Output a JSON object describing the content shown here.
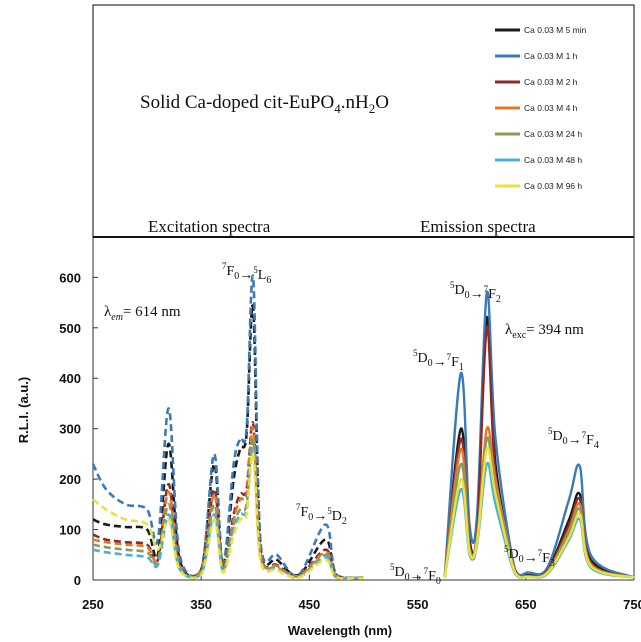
{
  "chart_data": {
    "type": "line",
    "title": "Solid Ca-doped cit-EuPO",
    "title_sub1": "4",
    "title_mid": ".nH",
    "title_sub2": "2",
    "title_end": "O",
    "xlabel": "Wavelength (nm)",
    "ylabel": "R.L.I. (a.u.)",
    "xlim": [
      250,
      750
    ],
    "ylim": [
      0,
      680
    ],
    "x_ticks": [
      "250",
      "350",
      "450",
      "550",
      "650",
      "750"
    ],
    "y_ticks": [
      "0",
      "100",
      "200",
      "300",
      "400",
      "500",
      "600"
    ],
    "section_labels": {
      "excitation": "Excitation spectra",
      "emission": "Emission spectra"
    },
    "lambda_em": {
      "symbol": "λ",
      "sub": "em",
      "value": "= 614 nm"
    },
    "lambda_exc": {
      "symbol": "λ",
      "sub": "exc",
      "value": "= 394 nm"
    },
    "annotations": [
      {
        "id": "l6",
        "from": "7F0",
        "to": "5L6"
      },
      {
        "id": "d2",
        "from": "7F0",
        "to": "5D2"
      },
      {
        "id": "f0",
        "from": "5D0",
        "to": "7F0"
      },
      {
        "id": "f1",
        "from": "5D0",
        "to": "7F1"
      },
      {
        "id": "f2",
        "from": "5D0",
        "to": "7F2"
      },
      {
        "id": "f3",
        "from": "5D0",
        "to": "7F3"
      },
      {
        "id": "f4",
        "from": "5D0",
        "to": "7F4"
      }
    ],
    "legend_position": "top-right",
    "series": [
      {
        "name": "Ca 0.03 M 5 min",
        "color": "#1a1a1a",
        "excitation": [
          [
            "250",
            120
          ],
          [
            "262",
            110
          ],
          [
            "280",
            105
          ],
          [
            "300",
            100
          ],
          [
            "310",
            50
          ],
          [
            "320",
            270
          ],
          [
            "330",
            40
          ],
          [
            "350",
            20
          ],
          [
            "362",
            230
          ],
          [
            "370",
            30
          ],
          [
            "380",
            200
          ],
          [
            "386",
            260
          ],
          [
            "392",
            290
          ],
          [
            "398",
            540
          ],
          [
            "405",
            60
          ],
          [
            "420",
            40
          ],
          [
            "440",
            10
          ],
          [
            "465",
            80
          ],
          [
            "475",
            10
          ],
          [
            "500",
            5
          ]
        ],
        "emission": [
          [
            "575",
            5
          ],
          [
            "590",
            300
          ],
          [
            "598",
            80
          ],
          [
            "605",
            100
          ],
          [
            "614",
            520
          ],
          [
            "622",
            230
          ],
          [
            "640",
            20
          ],
          [
            "652",
            10
          ],
          [
            "670",
            20
          ],
          [
            "690",
            120
          ],
          [
            "700",
            170
          ],
          [
            "710",
            40
          ],
          [
            "750",
            5
          ]
        ]
      },
      {
        "name": "Ca 0.03 M 1 h",
        "color": "#3a7ab8",
        "excitation": [
          [
            "250",
            230
          ],
          [
            "262",
            180
          ],
          [
            "280",
            150
          ],
          [
            "300",
            140
          ],
          [
            "310",
            80
          ],
          [
            "320",
            340
          ],
          [
            "330",
            50
          ],
          [
            "350",
            20
          ],
          [
            "362",
            250
          ],
          [
            "370",
            30
          ],
          [
            "380",
            230
          ],
          [
            "386",
            280
          ],
          [
            "392",
            300
          ],
          [
            "398",
            600
          ],
          [
            "405",
            70
          ],
          [
            "420",
            50
          ],
          [
            "440",
            10
          ],
          [
            "465",
            110
          ],
          [
            "475",
            10
          ],
          [
            "500",
            5
          ]
        ],
        "emission": [
          [
            "575",
            5
          ],
          [
            "590",
            410
          ],
          [
            "598",
            110
          ],
          [
            "605",
            130
          ],
          [
            "614",
            570
          ],
          [
            "622",
            280
          ],
          [
            "640",
            20
          ],
          [
            "652",
            15
          ],
          [
            "670",
            25
          ],
          [
            "690",
            160
          ],
          [
            "700",
            225
          ],
          [
            "710",
            50
          ],
          [
            "750",
            5
          ]
        ]
      },
      {
        "name": "Ca 0.03 M 2 h",
        "color": "#8b2a2a",
        "excitation": [
          [
            "250",
            90
          ],
          [
            "262",
            80
          ],
          [
            "280",
            75
          ],
          [
            "300",
            70
          ],
          [
            "310",
            40
          ],
          [
            "320",
            190
          ],
          [
            "330",
            30
          ],
          [
            "350",
            20
          ],
          [
            "362",
            180
          ],
          [
            "370",
            25
          ],
          [
            "380",
            130
          ],
          [
            "386",
            170
          ],
          [
            "392",
            180
          ],
          [
            "398",
            310
          ],
          [
            "405",
            50
          ],
          [
            "420",
            30
          ],
          [
            "440",
            8
          ],
          [
            "465",
            60
          ],
          [
            "475",
            8
          ],
          [
            "500",
            5
          ]
        ],
        "emission": [
          [
            "575",
            5
          ],
          [
            "590",
            280
          ],
          [
            "598",
            70
          ],
          [
            "605",
            90
          ],
          [
            "614",
            500
          ],
          [
            "622",
            210
          ],
          [
            "640",
            18
          ],
          [
            "652",
            8
          ],
          [
            "670",
            18
          ],
          [
            "690",
            110
          ],
          [
            "700",
            160
          ],
          [
            "710",
            35
          ],
          [
            "750",
            5
          ]
        ]
      },
      {
        "name": "Ca 0.03 M 4 h",
        "color": "#e07a2a",
        "excitation": [
          [
            "250",
            80
          ],
          [
            "262",
            75
          ],
          [
            "280",
            70
          ],
          [
            "300",
            65
          ],
          [
            "310",
            40
          ],
          [
            "320",
            175
          ],
          [
            "330",
            28
          ],
          [
            "350",
            18
          ],
          [
            "362",
            170
          ],
          [
            "370",
            22
          ],
          [
            "380",
            120
          ],
          [
            "386",
            160
          ],
          [
            "392",
            170
          ],
          [
            "398",
            300
          ],
          [
            "405",
            48
          ],
          [
            "420",
            28
          ],
          [
            "440",
            8
          ],
          [
            "465",
            55
          ],
          [
            "475",
            8
          ],
          [
            "500",
            5
          ]
        ],
        "emission": [
          [
            "575",
            5
          ],
          [
            "590",
            260
          ],
          [
            "598",
            65
          ],
          [
            "605",
            85
          ],
          [
            "614",
            300
          ],
          [
            "622",
            200
          ],
          [
            "640",
            16
          ],
          [
            "652",
            8
          ],
          [
            "670",
            16
          ],
          [
            "690",
            100
          ],
          [
            "700",
            150
          ],
          [
            "710",
            32
          ],
          [
            "750",
            5
          ]
        ]
      },
      {
        "name": "Ca 0.03 M 24 h",
        "color": "#8a9a5a",
        "excitation": [
          [
            "250",
            70
          ],
          [
            "262",
            65
          ],
          [
            "280",
            60
          ],
          [
            "300",
            55
          ],
          [
            "310",
            35
          ],
          [
            "320",
            150
          ],
          [
            "330",
            25
          ],
          [
            "350",
            15
          ],
          [
            "362",
            150
          ],
          [
            "370",
            20
          ],
          [
            "380",
            110
          ],
          [
            "386",
            140
          ],
          [
            "392",
            150
          ],
          [
            "398",
            280
          ],
          [
            "405",
            45
          ],
          [
            "420",
            25
          ],
          [
            "440",
            6
          ],
          [
            "465",
            50
          ],
          [
            "475",
            6
          ],
          [
            "500",
            5
          ]
        ],
        "emission": [
          [
            "575",
            5
          ],
          [
            "590",
            230
          ],
          [
            "598",
            60
          ],
          [
            "605",
            80
          ],
          [
            "614",
            280
          ],
          [
            "622",
            180
          ],
          [
            "640",
            15
          ],
          [
            "652",
            7
          ],
          [
            "670",
            15
          ],
          [
            "690",
            95
          ],
          [
            "700",
            140
          ],
          [
            "710",
            30
          ],
          [
            "750",
            5
          ]
        ]
      },
      {
        "name": "Ca 0.03 M 48 h",
        "color": "#4bb0d8",
        "excitation": [
          [
            "250",
            60
          ],
          [
            "262",
            55
          ],
          [
            "280",
            50
          ],
          [
            "300",
            45
          ],
          [
            "310",
            30
          ],
          [
            "320",
            130
          ],
          [
            "330",
            22
          ],
          [
            "350",
            12
          ],
          [
            "362",
            130
          ],
          [
            "370",
            18
          ],
          [
            "380",
            100
          ],
          [
            "386",
            130
          ],
          [
            "392",
            140
          ],
          [
            "398",
            260
          ],
          [
            "405",
            40
          ],
          [
            "420",
            22
          ],
          [
            "440",
            5
          ],
          [
            "465",
            45
          ],
          [
            "475",
            5
          ],
          [
            "500",
            5
          ]
        ],
        "emission": [
          [
            "575",
            5
          ],
          [
            "590",
            180
          ],
          [
            "598",
            50
          ],
          [
            "605",
            70
          ],
          [
            "614",
            230
          ],
          [
            "622",
            150
          ],
          [
            "640",
            12
          ],
          [
            "652",
            6
          ],
          [
            "670",
            12
          ],
          [
            "690",
            80
          ],
          [
            "700",
            120
          ],
          [
            "710",
            25
          ],
          [
            "750",
            5
          ]
        ]
      },
      {
        "name": "Ca 0.03 M 96 h",
        "color": "#e8e23a",
        "excitation": [
          [
            "250",
            160
          ],
          [
            "262",
            140
          ],
          [
            "280",
            120
          ],
          [
            "300",
            110
          ],
          [
            "310",
            60
          ],
          [
            "320",
            120
          ],
          [
            "330",
            20
          ],
          [
            "350",
            10
          ],
          [
            "362",
            120
          ],
          [
            "370",
            15
          ],
          [
            "380",
            90
          ],
          [
            "386",
            120
          ],
          [
            "392",
            130
          ],
          [
            "398",
            250
          ],
          [
            "405",
            38
          ],
          [
            "420",
            20
          ],
          [
            "440",
            5
          ],
          [
            "465",
            40
          ],
          [
            "475",
            5
          ],
          [
            "500",
            5
          ]
        ],
        "emission": [
          [
            "575",
            5
          ],
          [
            "590",
            200
          ],
          [
            "598",
            55
          ],
          [
            "605",
            75
          ],
          [
            "614",
            260
          ],
          [
            "622",
            170
          ],
          [
            "640",
            14
          ],
          [
            "652",
            6
          ],
          [
            "670",
            14
          ],
          [
            "690",
            85
          ],
          [
            "700",
            130
          ],
          [
            "710",
            28
          ],
          [
            "750",
            5
          ]
        ]
      }
    ]
  }
}
